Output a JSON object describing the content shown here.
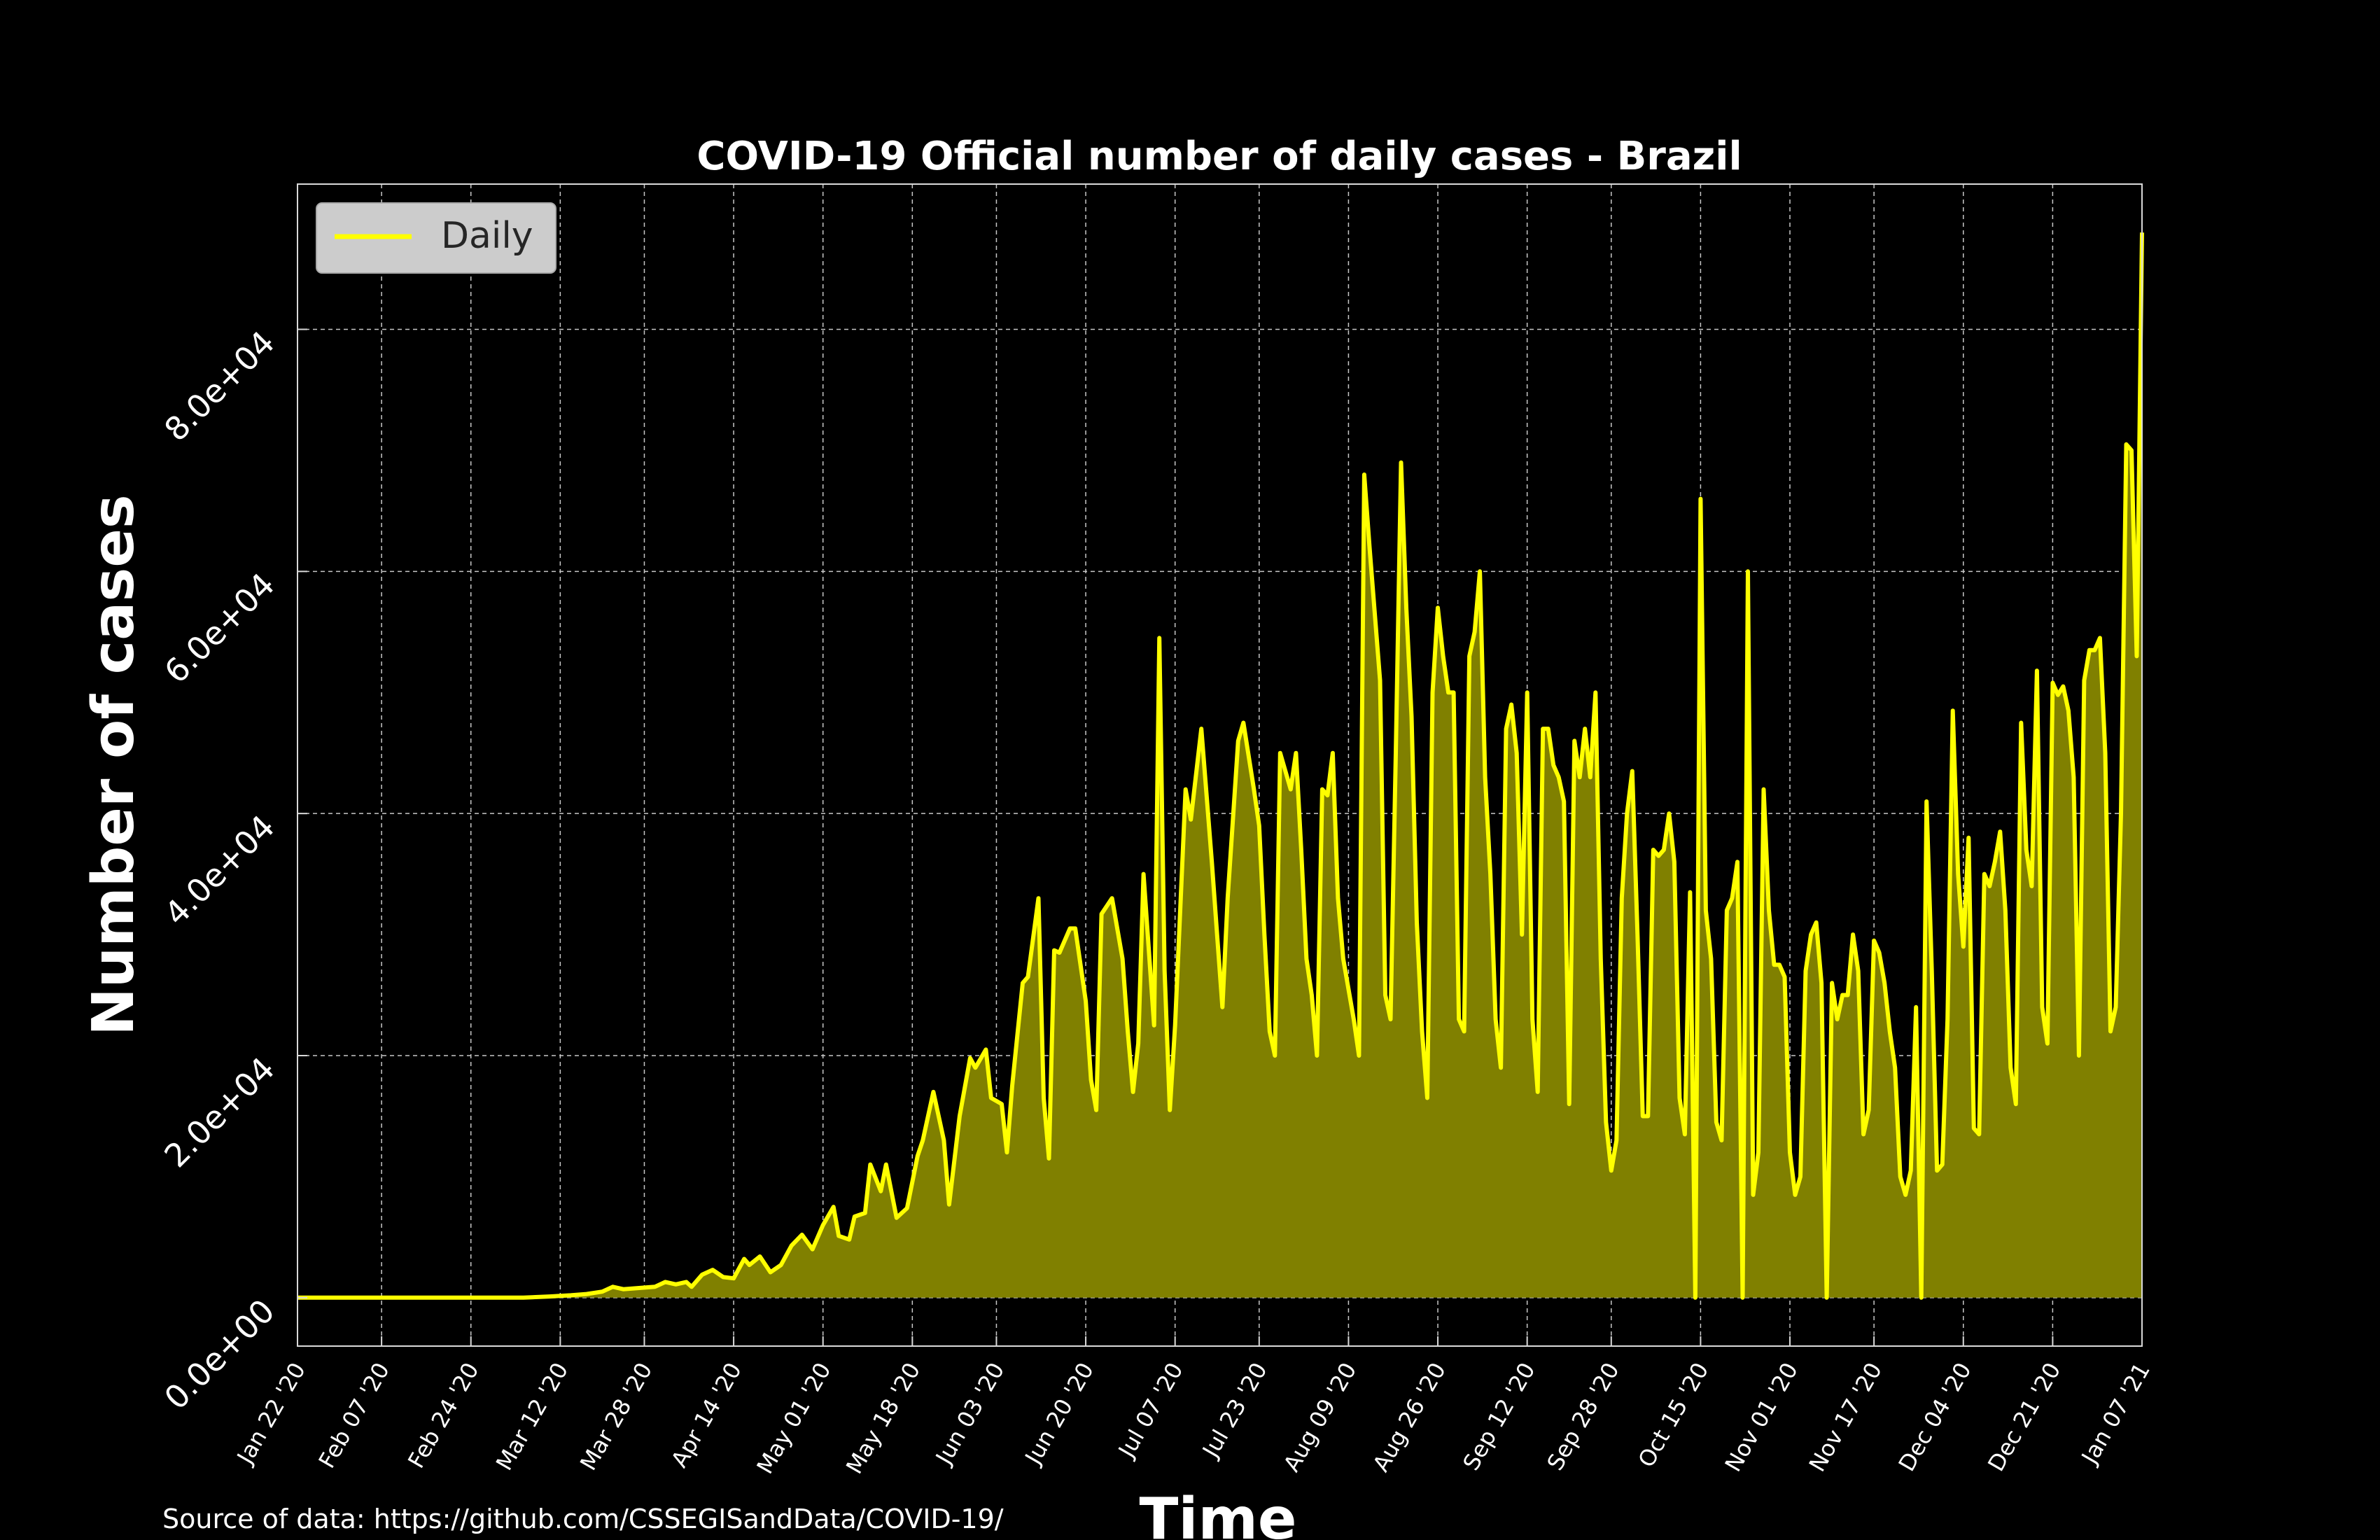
{
  "chart_data": {
    "type": "area",
    "title": "COVID-19 Official number of daily cases - Brazil",
    "xlabel": "Time",
    "ylabel": "Number of cases",
    "source": "Source of data: https://github.com/CSSEGISandData/COVID-19/",
    "x_start": "2020-01-22",
    "x_end": "2021-01-07",
    "xlim": [
      "2020-01-22",
      "2021-01-07"
    ],
    "ylim": [
      -4000,
      92000
    ],
    "y_ticks": [
      0,
      20000,
      40000,
      60000,
      80000
    ],
    "y_tick_labels": [
      "0.0e+00",
      "2.0e+04",
      "4.0e+04",
      "6.0e+04",
      "8.0e+04"
    ],
    "x_ticks": [
      "2020-01-22",
      "2020-02-07",
      "2020-02-24",
      "2020-03-12",
      "2020-03-28",
      "2020-04-14",
      "2020-05-01",
      "2020-05-18",
      "2020-06-03",
      "2020-06-20",
      "2020-07-07",
      "2020-07-23",
      "2020-08-09",
      "2020-08-26",
      "2020-09-12",
      "2020-09-28",
      "2020-10-15",
      "2020-11-01",
      "2020-11-17",
      "2020-12-04",
      "2020-12-21",
      "2021-01-07"
    ],
    "x_tick_labels": [
      "Jan 22 '20",
      "Feb 07 '20",
      "Feb 24 '20",
      "Mar 12 '20",
      "Mar 28 '20",
      "Apr 14 '20",
      "May 01 '20",
      "May 18 '20",
      "Jun 03 '20",
      "Jun 20 '20",
      "Jul 07 '20",
      "Jul 23 '20",
      "Aug 09 '20",
      "Aug 26 '20",
      "Sep 12 '20",
      "Sep 28 '20",
      "Oct 15 '20",
      "Nov 01 '20",
      "Nov 17 '20",
      "Dec 04 '20",
      "Dec 21 '20",
      "Jan 07 '21"
    ],
    "grid": true,
    "legend_position": "top-left",
    "series": [
      {
        "name": "Daily",
        "color": "#ffff00",
        "fill_color": "#808000",
        "points": [
          [
            "2020-01-22",
            0
          ],
          [
            "2020-02-25",
            0
          ],
          [
            "2020-03-05",
            0
          ],
          [
            "2020-03-10",
            100
          ],
          [
            "2020-03-14",
            200
          ],
          [
            "2020-03-17",
            300
          ],
          [
            "2020-03-20",
            500
          ],
          [
            "2020-03-22",
            900
          ],
          [
            "2020-03-24",
            700
          ],
          [
            "2020-03-27",
            800
          ],
          [
            "2020-03-30",
            900
          ],
          [
            "2020-04-01",
            1300
          ],
          [
            "2020-04-03",
            1100
          ],
          [
            "2020-04-05",
            1300
          ],
          [
            "2020-04-06",
            900
          ],
          [
            "2020-04-08",
            1900
          ],
          [
            "2020-04-10",
            2300
          ],
          [
            "2020-04-12",
            1700
          ],
          [
            "2020-04-14",
            1600
          ],
          [
            "2020-04-16",
            3200
          ],
          [
            "2020-04-17",
            2700
          ],
          [
            "2020-04-19",
            3400
          ],
          [
            "2020-04-21",
            2100
          ],
          [
            "2020-04-23",
            2700
          ],
          [
            "2020-04-25",
            4300
          ],
          [
            "2020-04-27",
            5200
          ],
          [
            "2020-04-29",
            4000
          ],
          [
            "2020-05-01",
            6000
          ],
          [
            "2020-05-03",
            7500
          ],
          [
            "2020-05-04",
            5100
          ],
          [
            "2020-05-06",
            4800
          ],
          [
            "2020-05-07",
            6700
          ],
          [
            "2020-05-09",
            7000
          ],
          [
            "2020-05-10",
            11000
          ],
          [
            "2020-05-12",
            8800
          ],
          [
            "2020-05-13",
            11000
          ],
          [
            "2020-05-15",
            6600
          ],
          [
            "2020-05-17",
            7400
          ],
          [
            "2020-05-19",
            11700
          ],
          [
            "2020-05-20",
            13000
          ],
          [
            "2020-05-22",
            17000
          ],
          [
            "2020-05-24",
            13000
          ],
          [
            "2020-05-25",
            7700
          ],
          [
            "2020-05-27",
            15000
          ],
          [
            "2020-05-29",
            19800
          ],
          [
            "2020-05-30",
            19000
          ],
          [
            "2020-06-01",
            20500
          ],
          [
            "2020-06-02",
            16500
          ],
          [
            "2020-06-04",
            16000
          ],
          [
            "2020-06-05",
            12000
          ],
          [
            "2020-06-06",
            17500
          ],
          [
            "2020-06-08",
            26000
          ],
          [
            "2020-06-09",
            26500
          ],
          [
            "2020-06-11",
            33000
          ],
          [
            "2020-06-12",
            16500
          ],
          [
            "2020-06-13",
            11500
          ],
          [
            "2020-06-14",
            28700
          ],
          [
            "2020-06-15",
            28500
          ],
          [
            "2020-06-17",
            30500
          ],
          [
            "2020-06-18",
            30500
          ],
          [
            "2020-06-20",
            24500
          ],
          [
            "2020-06-21",
            18000
          ],
          [
            "2020-06-22",
            15500
          ],
          [
            "2020-06-23",
            31700
          ],
          [
            "2020-06-25",
            33000
          ],
          [
            "2020-06-27",
            28000
          ],
          [
            "2020-06-28",
            22000
          ],
          [
            "2020-06-29",
            17000
          ],
          [
            "2020-06-30",
            21000
          ],
          [
            "2020-07-01",
            35000
          ],
          [
            "2020-07-03",
            22500
          ],
          [
            "2020-07-04",
            54500
          ],
          [
            "2020-07-05",
            27000
          ],
          [
            "2020-07-06",
            15500
          ],
          [
            "2020-07-07",
            22500
          ],
          [
            "2020-07-09",
            42000
          ],
          [
            "2020-07-10",
            39500
          ],
          [
            "2020-07-12",
            47000
          ],
          [
            "2020-07-14",
            36000
          ],
          [
            "2020-07-15",
            30000
          ],
          [
            "2020-07-16",
            24000
          ],
          [
            "2020-07-17",
            33000
          ],
          [
            "2020-07-19",
            46000
          ],
          [
            "2020-07-20",
            47500
          ],
          [
            "2020-07-22",
            42000
          ],
          [
            "2020-07-23",
            39000
          ],
          [
            "2020-07-24",
            30000
          ],
          [
            "2020-07-25",
            22000
          ],
          [
            "2020-07-26",
            20000
          ],
          [
            "2020-07-27",
            45000
          ],
          [
            "2020-07-29",
            42000
          ],
          [
            "2020-07-30",
            45000
          ],
          [
            "2020-07-31",
            37000
          ],
          [
            "2020-08-01",
            28000
          ],
          [
            "2020-08-02",
            25000
          ],
          [
            "2020-08-03",
            20000
          ],
          [
            "2020-08-04",
            42000
          ],
          [
            "2020-08-05",
            41500
          ],
          [
            "2020-08-06",
            45000
          ],
          [
            "2020-08-07",
            33000
          ],
          [
            "2020-08-08",
            28000
          ],
          [
            "2020-08-10",
            23000
          ],
          [
            "2020-08-11",
            20000
          ],
          [
            "2020-08-12",
            68000
          ],
          [
            "2020-08-13",
            62000
          ],
          [
            "2020-08-15",
            51000
          ],
          [
            "2020-08-16",
            25000
          ],
          [
            "2020-08-17",
            23000
          ],
          [
            "2020-08-18",
            45000
          ],
          [
            "2020-08-19",
            69000
          ],
          [
            "2020-08-20",
            57000
          ],
          [
            "2020-08-21",
            48000
          ],
          [
            "2020-08-22",
            31000
          ],
          [
            "2020-08-23",
            22000
          ],
          [
            "2020-08-24",
            16500
          ],
          [
            "2020-08-25",
            50000
          ],
          [
            "2020-08-26",
            57000
          ],
          [
            "2020-08-27",
            53000
          ],
          [
            "2020-08-28",
            50000
          ],
          [
            "2020-08-29",
            50000
          ],
          [
            "2020-08-30",
            23000
          ],
          [
            "2020-08-31",
            22000
          ],
          [
            "2020-09-01",
            53000
          ],
          [
            "2020-09-02",
            55000
          ],
          [
            "2020-09-03",
            60000
          ],
          [
            "2020-09-04",
            43000
          ],
          [
            "2020-09-05",
            35000
          ],
          [
            "2020-09-06",
            23000
          ],
          [
            "2020-09-07",
            19000
          ],
          [
            "2020-09-08",
            47000
          ],
          [
            "2020-09-09",
            49000
          ],
          [
            "2020-09-10",
            45000
          ],
          [
            "2020-09-11",
            30000
          ],
          [
            "2020-09-12",
            50000
          ],
          [
            "2020-09-13",
            23000
          ],
          [
            "2020-09-14",
            17000
          ],
          [
            "2020-09-15",
            47000
          ],
          [
            "2020-09-16",
            47000
          ],
          [
            "2020-09-17",
            44000
          ],
          [
            "2020-09-18",
            43000
          ],
          [
            "2020-09-19",
            41000
          ],
          [
            "2020-09-20",
            16000
          ],
          [
            "2020-09-21",
            46000
          ],
          [
            "2020-09-22",
            43000
          ],
          [
            "2020-09-23",
            47000
          ],
          [
            "2020-09-24",
            43000
          ],
          [
            "2020-09-25",
            50000
          ],
          [
            "2020-09-26",
            28000
          ],
          [
            "2020-09-27",
            14500
          ],
          [
            "2020-09-28",
            10500
          ],
          [
            "2020-09-29",
            13000
          ],
          [
            "2020-09-30",
            33000
          ],
          [
            "2020-10-01",
            40000
          ],
          [
            "2020-10-02",
            43500
          ],
          [
            "2020-10-03",
            30000
          ],
          [
            "2020-10-04",
            15000
          ],
          [
            "2020-10-05",
            15000
          ],
          [
            "2020-10-06",
            37000
          ],
          [
            "2020-10-07",
            36500
          ],
          [
            "2020-10-08",
            37000
          ],
          [
            "2020-10-09",
            40000
          ],
          [
            "2020-10-10",
            36000
          ],
          [
            "2020-10-11",
            16500
          ],
          [
            "2020-10-12",
            13500
          ],
          [
            "2020-10-13",
            33500
          ],
          [
            "2020-10-14",
            0
          ],
          [
            "2020-10-15",
            66000
          ],
          [
            "2020-10-16",
            32000
          ],
          [
            "2020-10-17",
            28000
          ],
          [
            "2020-10-18",
            14500
          ],
          [
            "2020-10-19",
            13000
          ],
          [
            "2020-10-20",
            32000
          ],
          [
            "2020-10-21",
            33000
          ],
          [
            "2020-10-22",
            36000
          ],
          [
            "2020-10-23",
            0
          ],
          [
            "2020-10-24",
            60000
          ],
          [
            "2020-10-25",
            8500
          ],
          [
            "2020-10-26",
            12000
          ],
          [
            "2020-10-27",
            42000
          ],
          [
            "2020-10-28",
            32000
          ],
          [
            "2020-10-29",
            27500
          ],
          [
            "2020-10-30",
            27500
          ],
          [
            "2020-10-31",
            26500
          ],
          [
            "2020-11-01",
            12000
          ],
          [
            "2020-11-02",
            8500
          ],
          [
            "2020-11-03",
            10000
          ],
          [
            "2020-11-04",
            27000
          ],
          [
            "2020-11-05",
            30000
          ],
          [
            "2020-11-06",
            31000
          ],
          [
            "2020-11-07",
            26000
          ],
          [
            "2020-11-08",
            0
          ],
          [
            "2020-11-09",
            26000
          ],
          [
            "2020-11-10",
            23000
          ],
          [
            "2020-11-11",
            25000
          ],
          [
            "2020-11-12",
            25000
          ],
          [
            "2020-11-13",
            30000
          ],
          [
            "2020-11-14",
            27000
          ],
          [
            "2020-11-15",
            13500
          ],
          [
            "2020-11-16",
            15500
          ],
          [
            "2020-11-17",
            29500
          ],
          [
            "2020-11-18",
            28500
          ],
          [
            "2020-11-19",
            26000
          ],
          [
            "2020-11-20",
            22000
          ],
          [
            "2020-11-21",
            19000
          ],
          [
            "2020-11-22",
            10000
          ],
          [
            "2020-11-23",
            8500
          ],
          [
            "2020-11-24",
            10500
          ],
          [
            "2020-11-25",
            24000
          ],
          [
            "2020-11-26",
            0
          ],
          [
            "2020-11-27",
            41000
          ],
          [
            "2020-11-28",
            27000
          ],
          [
            "2020-11-29",
            10500
          ],
          [
            "2020-11-30",
            11000
          ],
          [
            "2020-12-01",
            23000
          ],
          [
            "2020-12-02",
            48500
          ],
          [
            "2020-12-03",
            35000
          ],
          [
            "2020-12-04",
            29000
          ],
          [
            "2020-12-05",
            38000
          ],
          [
            "2020-12-06",
            14000
          ],
          [
            "2020-12-07",
            13500
          ],
          [
            "2020-12-08",
            35000
          ],
          [
            "2020-12-09",
            34000
          ],
          [
            "2020-12-10",
            36000
          ],
          [
            "2020-12-11",
            38500
          ],
          [
            "2020-12-12",
            32000
          ],
          [
            "2020-12-13",
            19000
          ],
          [
            "2020-12-14",
            16000
          ],
          [
            "2020-12-15",
            47500
          ],
          [
            "2020-12-16",
            37000
          ],
          [
            "2020-12-17",
            34000
          ],
          [
            "2020-12-18",
            51800
          ],
          [
            "2020-12-19",
            24000
          ],
          [
            "2020-12-20",
            21000
          ],
          [
            "2020-12-21",
            50800
          ],
          [
            "2020-12-22",
            49800
          ],
          [
            "2020-12-23",
            50500
          ],
          [
            "2020-12-24",
            48500
          ],
          [
            "2020-12-25",
            43000
          ],
          [
            "2020-12-26",
            20000
          ],
          [
            "2020-12-27",
            51000
          ],
          [
            "2020-12-28",
            53500
          ],
          [
            "2020-12-29",
            53500
          ],
          [
            "2020-12-30",
            54500
          ],
          [
            "2020-12-31",
            45000
          ],
          [
            "2021-01-01",
            22000
          ],
          [
            "2021-01-02",
            24000
          ],
          [
            "2021-01-03",
            40000
          ],
          [
            "2021-01-04",
            70500
          ],
          [
            "2021-01-05",
            70000
          ],
          [
            "2021-01-06",
            53000
          ],
          [
            "2021-01-07",
            88000
          ]
        ]
      }
    ]
  }
}
